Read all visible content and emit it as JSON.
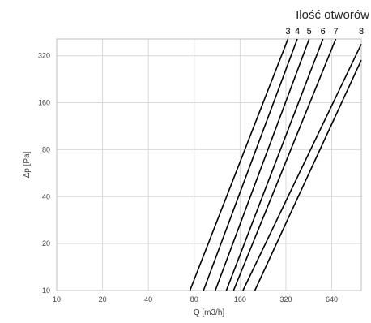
{
  "chart_data": {
    "type": "line",
    "title": "Ilość otworów",
    "xlabel": "Q [m3/h]",
    "ylabel": "Δp [Pa]",
    "xscale": "log2",
    "yscale": "log2",
    "xlim": [
      10,
      1000
    ],
    "ylim": [
      10,
      410
    ],
    "xticks": [
      10,
      20,
      40,
      80,
      160,
      320,
      640
    ],
    "yticks": [
      10,
      20,
      40,
      80,
      160,
      320
    ],
    "grid": true,
    "series": [
      {
        "name": "3",
        "x": [
          75,
          330
        ],
        "y": [
          10,
          410
        ]
      },
      {
        "name": "4",
        "x": [
          92,
          380
        ],
        "y": [
          10,
          410
        ]
      },
      {
        "name": "5",
        "x": [
          110,
          455
        ],
        "y": [
          10,
          410
        ]
      },
      {
        "name": "6",
        "x": [
          130,
          560
        ],
        "y": [
          10,
          410
        ]
      },
      {
        "name": "7",
        "x": [
          145,
          680
        ],
        "y": [
          10,
          410
        ]
      },
      {
        "name": "8",
        "x": [
          167,
          1000
        ],
        "y": [
          10,
          380
        ]
      },
      {
        "name": "",
        "x": [
          200,
          1000
        ],
        "y": [
          10,
          300
        ]
      }
    ]
  }
}
